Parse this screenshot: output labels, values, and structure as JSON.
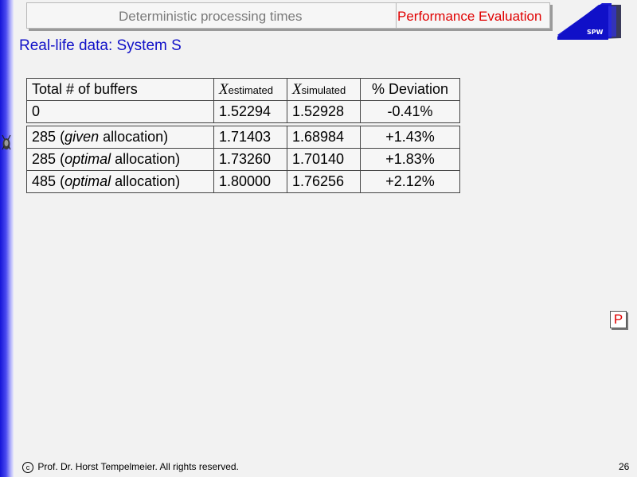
{
  "header": {
    "title": "Deterministic processing times",
    "section": "Performance Evaluation"
  },
  "logo": {
    "text": "SPW"
  },
  "subtitle": "Real-life data: System S",
  "table": {
    "headers": {
      "col1": "Total # of buffers",
      "col2_symbol": "X",
      "col2_sub": "estimated",
      "col3_symbol": "X",
      "col3_sub": "simulated",
      "col4": "% Deviation"
    },
    "base_row": {
      "buffers": "0",
      "estimated": "1.52294",
      "simulated": "1.52928",
      "deviation": "-0.41%"
    },
    "rows": [
      {
        "count": "285",
        "pre": "(",
        "mode": "given",
        "post": " allocation)",
        "estimated": "1.71403",
        "simulated": "1.68984",
        "deviation": "+1.43%"
      },
      {
        "count": "285",
        "pre": "(",
        "mode": "optimal",
        "post": " allocation)",
        "estimated": "1.73260",
        "simulated": "1.70140",
        "deviation": "+1.83%"
      },
      {
        "count": "485",
        "pre": "(",
        "mode": "optimal",
        "post": " allocation)",
        "estimated": "1.80000",
        "simulated": "1.76256",
        "deviation": "+2.12%"
      }
    ]
  },
  "p_button": {
    "label": "P"
  },
  "footer": {
    "copyright_symbol": "c",
    "text": "Prof. Dr. Horst Tempelmeier. All rights reserved.",
    "page_number": "26"
  },
  "colors": {
    "accent_blue": "#1010c8",
    "accent_red": "#e00000",
    "header_text_gray": "#7a7a7a"
  }
}
